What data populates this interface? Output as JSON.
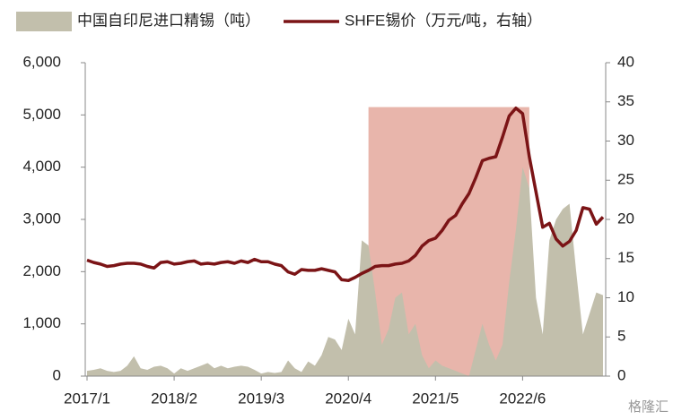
{
  "chart_data": {
    "type": "combo",
    "categories": [
      "2017/1",
      null,
      null,
      null,
      null,
      null,
      null,
      null,
      null,
      null,
      null,
      null,
      null,
      "2018/2",
      null,
      null,
      null,
      null,
      null,
      null,
      null,
      null,
      null,
      null,
      null,
      null,
      "2019/3",
      null,
      null,
      null,
      null,
      null,
      null,
      null,
      null,
      null,
      null,
      null,
      null,
      "2020/4",
      null,
      null,
      null,
      null,
      null,
      null,
      null,
      null,
      null,
      null,
      null,
      null,
      "2021/5",
      null,
      null,
      null,
      null,
      null,
      null,
      null,
      null,
      null,
      null,
      null,
      null,
      "2022/6",
      null,
      null,
      null,
      null,
      null,
      null,
      null,
      null,
      null,
      null,
      null,
      null
    ],
    "series": [
      {
        "name": "中国自印尼进口精锡（吨）",
        "kind": "area",
        "color": "#c2bfac",
        "values": [
          100,
          120,
          150,
          100,
          80,
          100,
          200,
          380,
          150,
          120,
          180,
          200,
          150,
          50,
          150,
          100,
          150,
          200,
          250,
          150,
          200,
          150,
          180,
          200,
          180,
          120,
          50,
          80,
          60,
          80,
          300,
          150,
          80,
          280,
          200,
          400,
          750,
          700,
          500,
          1100,
          800,
          2600,
          2500,
          1600,
          600,
          900,
          1500,
          1600,
          800,
          1000,
          400,
          150,
          300,
          200,
          150,
          100,
          50,
          0,
          500,
          1000,
          600,
          300,
          600,
          1800,
          2800,
          4000,
          3600,
          1500,
          800,
          2600,
          3000,
          3200,
          3300,
          2000,
          800,
          1200,
          1600,
          1550
        ]
      },
      {
        "name": "SHFE锡价（万元/吨，右轴）",
        "kind": "line",
        "axis": "y2",
        "color": "#7b1416",
        "values": [
          14.8,
          14.5,
          14.3,
          14.0,
          14.1,
          14.3,
          14.4,
          14.4,
          14.3,
          14.0,
          13.8,
          14.5,
          14.6,
          14.3,
          14.4,
          14.6,
          14.7,
          14.3,
          14.4,
          14.3,
          14.5,
          14.6,
          14.4,
          14.7,
          14.5,
          14.9,
          14.6,
          14.6,
          14.3,
          14.1,
          13.3,
          13.0,
          13.6,
          13.5,
          13.5,
          13.7,
          13.5,
          13.3,
          12.3,
          12.2,
          12.6,
          13.1,
          13.5,
          14.0,
          14.1,
          14.1,
          14.3,
          14.4,
          14.7,
          15.4,
          16.6,
          17.3,
          17.6,
          18.6,
          19.9,
          20.5,
          22.0,
          23.3,
          25.3,
          27.5,
          27.8,
          28.0,
          30.5,
          33.2,
          34.2,
          33.5,
          28.0,
          23.5,
          19.0,
          19.5,
          17.5,
          16.6,
          17.2,
          18.6,
          21.5,
          21.3,
          19.4,
          20.3
        ]
      }
    ],
    "highlight": {
      "from": 42,
      "to": 66,
      "top": 5150,
      "color": "#e8b5ab"
    },
    "ylim": [
      0,
      6000
    ],
    "yticks": [
      0,
      {
        "value": 1000,
        "label": "1,000"
      },
      {
        "value": 2000,
        "label": "2,000"
      },
      {
        "value": 3000,
        "label": "3,000"
      },
      {
        "value": 4000,
        "label": "4,000"
      },
      {
        "value": 5000,
        "label": "5,000"
      },
      {
        "value": 6000,
        "label": "6,000"
      }
    ],
    "y2lim": [
      0,
      40
    ],
    "y2ticks": [
      0,
      5,
      10,
      15,
      20,
      25,
      30,
      35,
      40
    ],
    "legend": "top",
    "watermark": "格隆汇"
  }
}
